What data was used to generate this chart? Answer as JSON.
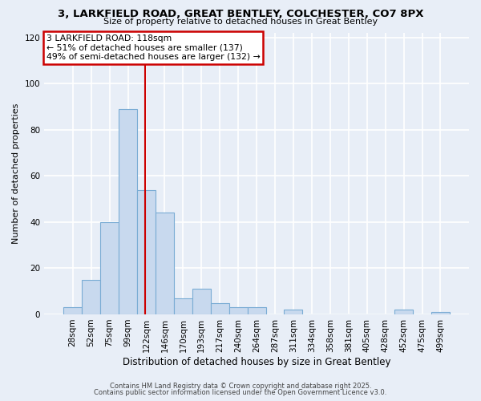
{
  "title1": "3, LARKFIELD ROAD, GREAT BENTLEY, COLCHESTER, CO7 8PX",
  "title2": "Size of property relative to detached houses in Great Bentley",
  "xlabel": "Distribution of detached houses by size in Great Bentley",
  "ylabel": "Number of detached properties",
  "categories": [
    "28sqm",
    "52sqm",
    "75sqm",
    "99sqm",
    "122sqm",
    "146sqm",
    "170sqm",
    "193sqm",
    "217sqm",
    "240sqm",
    "264sqm",
    "287sqm",
    "311sqm",
    "334sqm",
    "358sqm",
    "381sqm",
    "405sqm",
    "428sqm",
    "452sqm",
    "475sqm",
    "499sqm"
  ],
  "values": [
    3,
    15,
    40,
    89,
    54,
    44,
    7,
    11,
    5,
    3,
    3,
    0,
    2,
    0,
    0,
    0,
    0,
    0,
    2,
    0,
    1
  ],
  "bar_color": "#c8d9ee",
  "bar_edge_color": "#7aacd4",
  "vline_color": "#cc0000",
  "vline_x": 4.0,
  "annotation_text": "3 LARKFIELD ROAD: 118sqm\n← 51% of detached houses are smaller (137)\n49% of semi-detached houses are larger (132) →",
  "annotation_box_color": "#ffffff",
  "annotation_box_edge": "#cc0000",
  "ylim": [
    0,
    122
  ],
  "yticks": [
    0,
    20,
    40,
    60,
    80,
    100,
    120
  ],
  "footnote1": "Contains HM Land Registry data © Crown copyright and database right 2025.",
  "footnote2": "Contains public sector information licensed under the Open Government Licence v3.0.",
  "bg_color": "#e8eef7",
  "grid_color": "#ffffff"
}
